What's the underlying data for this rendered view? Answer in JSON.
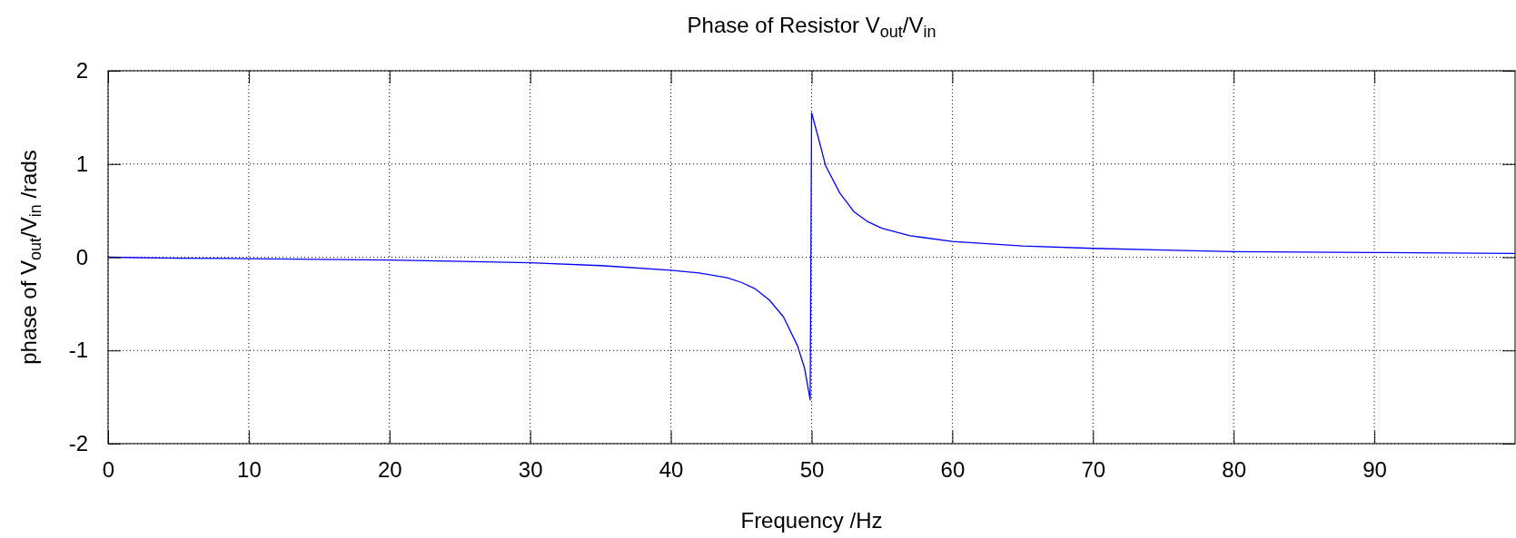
{
  "chart_data": {
    "type": "line",
    "title": "Phase of Resistor V$_{out}$/V$_{in}$",
    "xlabel": "Frequency /Hz",
    "ylabel": "phase of V$_{out}$/V$_{in}$ /rads",
    "xlim": [
      0,
      100
    ],
    "ylim": [
      -2,
      2
    ],
    "xticks": [
      0,
      10,
      20,
      30,
      40,
      50,
      60,
      70,
      80,
      90
    ],
    "yticks": [
      -2,
      -1,
      0,
      1,
      2
    ],
    "grid": true,
    "marker": "none",
    "line_style": "solid",
    "series": [
      {
        "color": "#0000ff",
        "x": [
          0,
          5,
          10,
          20,
          30,
          35,
          40,
          42,
          44,
          45,
          46,
          47,
          48,
          49,
          49.5,
          49.9,
          50,
          50.5,
          51,
          52,
          53,
          54,
          55,
          57,
          60,
          65,
          70,
          80,
          90,
          100
        ],
        "values": [
          0,
          -0.01,
          -0.015,
          -0.03,
          -0.06,
          -0.09,
          -0.14,
          -0.17,
          -0.22,
          -0.27,
          -0.34,
          -0.46,
          -0.64,
          -0.95,
          -1.19,
          -1.53,
          1.55,
          1.27,
          0.98,
          0.69,
          0.49,
          0.38,
          0.31,
          0.23,
          0.17,
          0.12,
          0.095,
          0.06,
          0.05,
          0.04
        ]
      }
    ]
  }
}
